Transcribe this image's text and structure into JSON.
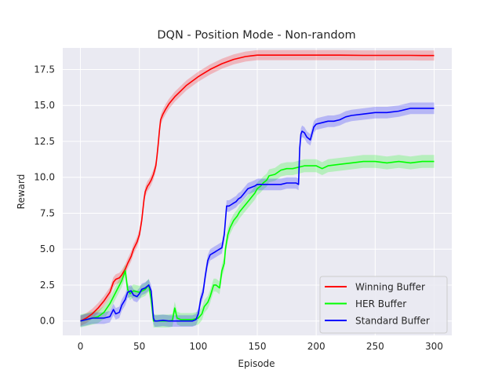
{
  "chart_data": {
    "type": "line",
    "title": "DQN - Position Mode - Non-random",
    "xlabel": "Episode",
    "ylabel": "Reward",
    "xlim": [
      -15,
      315
    ],
    "ylim": [
      -1.0,
      19.0
    ],
    "xticks": [
      0,
      50,
      100,
      150,
      200,
      250,
      300
    ],
    "yticks": [
      0.0,
      2.5,
      5.0,
      7.5,
      10.0,
      12.5,
      15.0,
      17.5
    ],
    "xtick_labels": [
      "0",
      "50",
      "100",
      "150",
      "200",
      "250",
      "300"
    ],
    "ytick_labels": [
      "0.0",
      "2.5",
      "5.0",
      "7.5",
      "10.0",
      "12.5",
      "15.0",
      "17.5"
    ],
    "grid": true,
    "legend_position": "lower-right",
    "background": "#eaeaf2",
    "series": [
      {
        "name": "Winning Buffer",
        "color": "#ff0000",
        "band": 0.35,
        "x": [
          0,
          5,
          10,
          15,
          20,
          25,
          28,
          30,
          33,
          35,
          38,
          40,
          43,
          45,
          48,
          50,
          52,
          54,
          55,
          56,
          57,
          58,
          60,
          62,
          64,
          65,
          66,
          67,
          68,
          70,
          72,
          75,
          80,
          85,
          90,
          95,
          100,
          110,
          120,
          130,
          140,
          145,
          150,
          160,
          180,
          200,
          220,
          240,
          260,
          280,
          290,
          300
        ],
        "y": [
          0.0,
          0.2,
          0.5,
          0.9,
          1.4,
          2.0,
          2.7,
          2.9,
          3.0,
          3.2,
          3.6,
          4.0,
          4.5,
          5.0,
          5.5,
          6.0,
          7.0,
          8.5,
          9.0,
          9.2,
          9.4,
          9.5,
          9.8,
          10.2,
          10.8,
          11.5,
          12.3,
          13.2,
          14.0,
          14.4,
          14.7,
          15.1,
          15.6,
          16.0,
          16.4,
          16.7,
          17.0,
          17.5,
          17.9,
          18.2,
          18.4,
          18.45,
          18.5,
          18.5,
          18.5,
          18.5,
          18.5,
          18.48,
          18.48,
          18.48,
          18.47,
          18.47
        ]
      },
      {
        "name": "HER Buffer",
        "color": "#00ff00",
        "band": 0.45,
        "x": [
          0,
          5,
          10,
          15,
          20,
          25,
          30,
          35,
          38,
          40,
          42,
          45,
          50,
          55,
          58,
          60,
          62,
          64,
          66,
          70,
          75,
          78,
          80,
          82,
          85,
          90,
          95,
          100,
          103,
          105,
          108,
          110,
          113,
          115,
          118,
          120,
          122,
          123,
          125,
          127,
          130,
          133,
          135,
          138,
          140,
          143,
          145,
          148,
          150,
          153,
          155,
          158,
          160,
          165,
          170,
          175,
          180,
          185,
          190,
          195,
          200,
          205,
          210,
          220,
          230,
          240,
          250,
          260,
          270,
          280,
          290,
          300
        ],
        "y": [
          0.0,
          0.1,
          0.2,
          0.3,
          0.6,
          1.2,
          2.0,
          2.8,
          3.5,
          2.2,
          1.9,
          2.1,
          2.0,
          2.2,
          2.5,
          1.5,
          0.0,
          0.0,
          0.0,
          0.0,
          0.0,
          0.05,
          0.9,
          0.2,
          0.1,
          0.1,
          0.1,
          0.2,
          0.5,
          1.0,
          1.3,
          1.7,
          2.5,
          2.5,
          2.3,
          3.5,
          4.0,
          5.0,
          6.0,
          6.5,
          7.0,
          7.3,
          7.6,
          7.9,
          8.1,
          8.4,
          8.6,
          8.9,
          9.2,
          9.4,
          9.6,
          9.8,
          10.1,
          10.2,
          10.5,
          10.6,
          10.6,
          10.7,
          10.8,
          10.8,
          10.8,
          10.6,
          10.8,
          10.9,
          11.0,
          11.1,
          11.1,
          11.0,
          11.1,
          11.0,
          11.1,
          11.1
        ]
      },
      {
        "name": "Standard Buffer",
        "color": "#0000ff",
        "band": 0.4,
        "x": [
          0,
          5,
          10,
          15,
          20,
          25,
          28,
          30,
          33,
          35,
          38,
          40,
          43,
          45,
          48,
          50,
          52,
          55,
          58,
          60,
          61,
          62,
          63,
          65,
          70,
          75,
          80,
          85,
          90,
          95,
          98,
          100,
          102,
          104,
          106,
          108,
          110,
          112,
          114,
          116,
          118,
          120,
          122,
          124,
          126,
          128,
          130,
          132,
          134,
          136,
          138,
          140,
          142,
          145,
          148,
          150,
          155,
          160,
          165,
          170,
          175,
          180,
          183,
          185,
          186,
          187,
          188,
          190,
          192,
          195,
          198,
          200,
          205,
          210,
          215,
          220,
          225,
          230,
          240,
          250,
          260,
          270,
          275,
          280,
          285,
          290,
          295,
          300
        ],
        "y": [
          0.0,
          0.1,
          0.2,
          0.2,
          0.2,
          0.3,
          0.8,
          0.5,
          0.6,
          1.1,
          1.5,
          2.0,
          2.1,
          1.8,
          1.7,
          1.9,
          2.2,
          2.3,
          2.5,
          2.1,
          1.2,
          0.2,
          0.0,
          0.0,
          0.05,
          0.0,
          0.0,
          0.0,
          0.0,
          0.0,
          0.1,
          0.5,
          1.5,
          2.0,
          3.2,
          4.2,
          4.6,
          4.7,
          4.8,
          4.9,
          5.0,
          5.1,
          6.0,
          8.0,
          8.0,
          8.1,
          8.2,
          8.3,
          8.5,
          8.6,
          8.8,
          9.0,
          9.2,
          9.3,
          9.4,
          9.5,
          9.5,
          9.5,
          9.5,
          9.5,
          9.6,
          9.6,
          9.6,
          9.5,
          12.0,
          13.0,
          13.2,
          13.1,
          12.8,
          12.6,
          13.5,
          13.7,
          13.8,
          13.9,
          13.9,
          14.0,
          14.2,
          14.3,
          14.4,
          14.5,
          14.5,
          14.6,
          14.7,
          14.8,
          14.8,
          14.8,
          14.8,
          14.8
        ]
      }
    ]
  }
}
